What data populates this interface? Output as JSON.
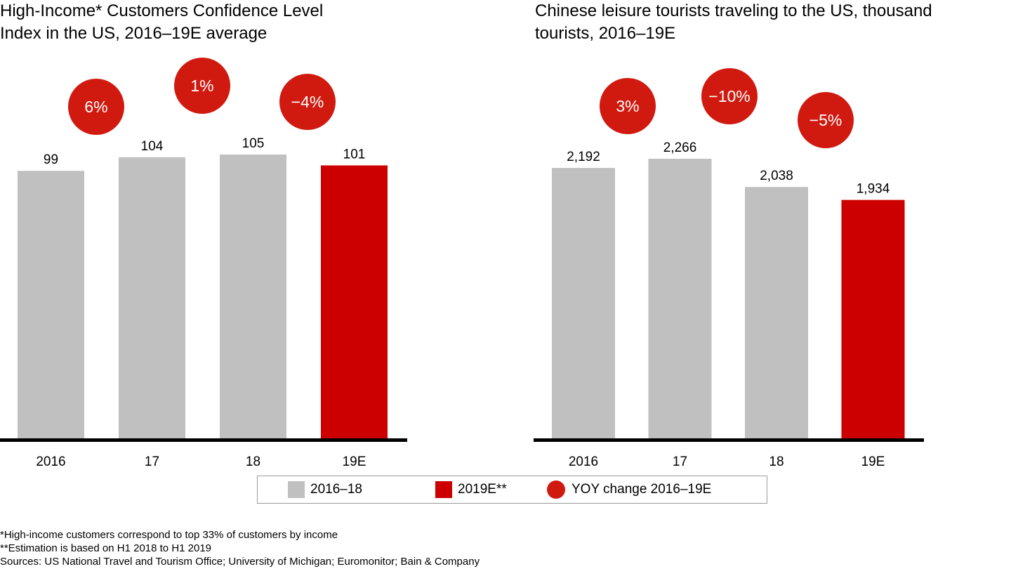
{
  "colors": {
    "gray_bar": "#c0c0c0",
    "red_bar": "#cc0000",
    "circle": "#d01a10",
    "axis": "#000000"
  },
  "chart_data": [
    {
      "type": "bar",
      "title": "High-Income* Customers Confidence Level\nIndex in the US, 2016–19E average",
      "categories": [
        "2016",
        "17",
        "18",
        "19E"
      ],
      "values": [
        99,
        104,
        105,
        101
      ],
      "value_labels": [
        "99",
        "104",
        "105",
        "101"
      ],
      "highlight_index": 3,
      "yoy_changes": [
        "6%",
        "1%",
        "−4%"
      ],
      "ylim": [
        0,
        105
      ],
      "xlabel": "",
      "ylabel": ""
    },
    {
      "type": "bar",
      "title": "Chinese leisure tourists traveling to the US, thousand\ntourists, 2016–19E",
      "categories": [
        "2016",
        "17",
        "18",
        "19E"
      ],
      "values": [
        2192,
        2266,
        2038,
        1934
      ],
      "value_labels": [
        "2,192",
        "2,266",
        "2,038",
        "1,934"
      ],
      "highlight_index": 3,
      "yoy_changes": [
        "3%",
        "−10%",
        "−5%"
      ],
      "ylim": [
        0,
        2266
      ],
      "xlabel": "",
      "ylabel": ""
    }
  ],
  "legend": {
    "items": [
      {
        "label": "2016–18",
        "kind": "square",
        "color": "#c0c0c0"
      },
      {
        "label": "2019E**",
        "kind": "square",
        "color": "#cc0000"
      },
      {
        "label": "YOY change 2016–19E",
        "kind": "circle",
        "color": "#d01a10"
      }
    ]
  },
  "footnotes": [
    "*High-income customers correspond to top 33% of customers by income",
    "**Estimation is based on H1 2018 to H1 2019",
    "Sources: US National Travel and Tourism Office; University of Michigan; Euromonitor; Bain & Company"
  ]
}
